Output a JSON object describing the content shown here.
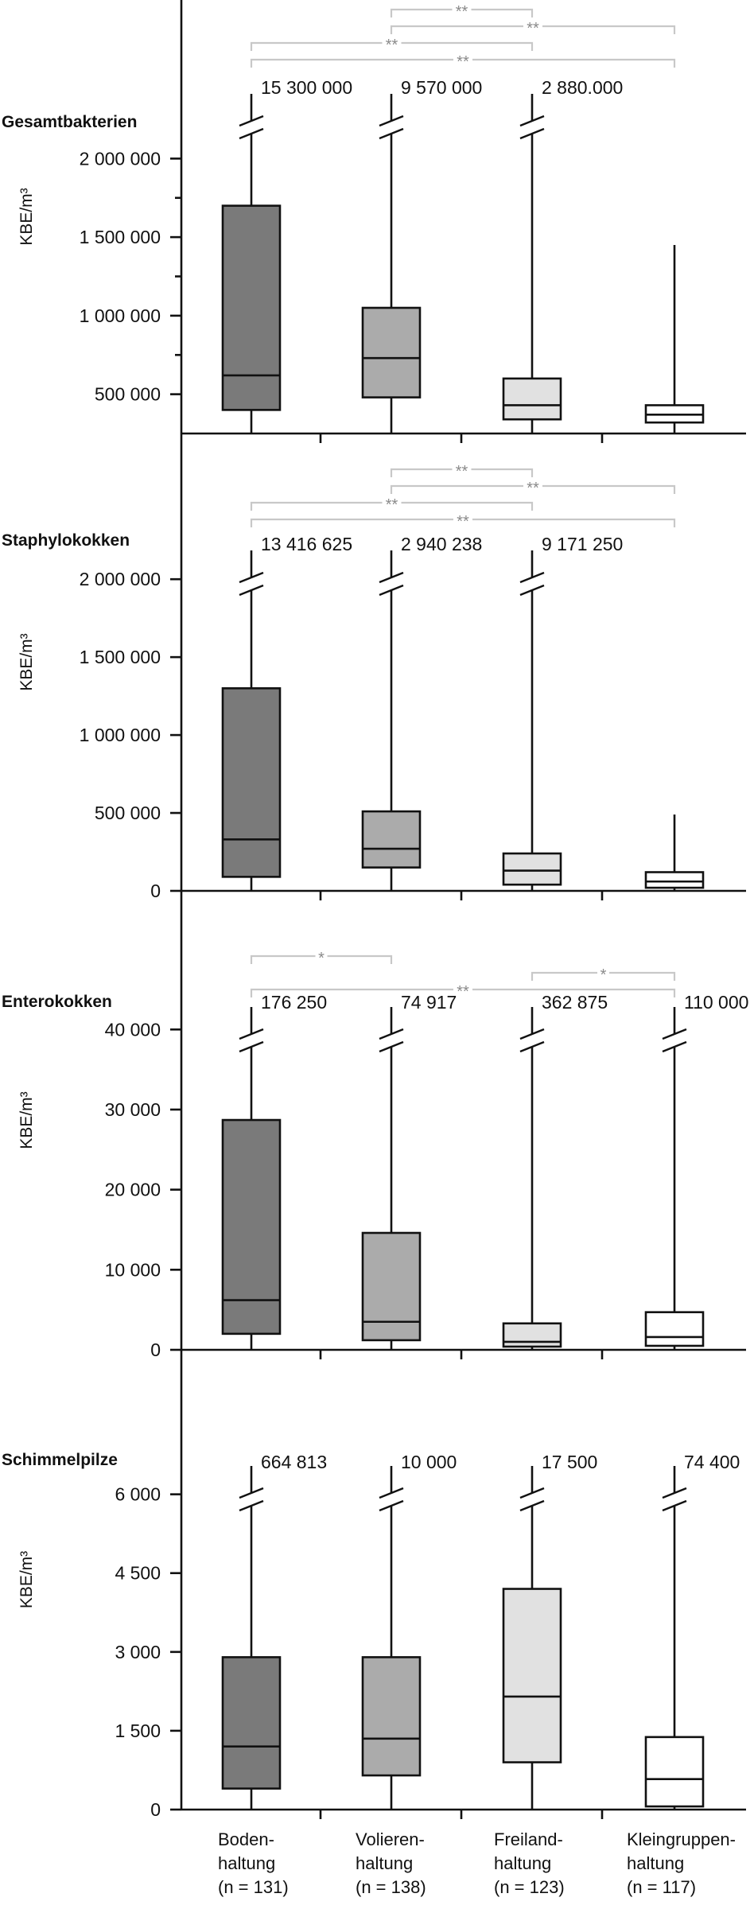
{
  "chart_data": {
    "type": "boxplot",
    "categories": [
      {
        "lines": [
          "Boden-",
          "haltung",
          "(n = 131)"
        ],
        "color": "#7a7a7a"
      },
      {
        "lines": [
          "Volieren-",
          "haltung",
          "(n = 138)"
        ],
        "color": "#ababab"
      },
      {
        "lines": [
          "Freiland-",
          "haltung",
          "(n = 123)"
        ],
        "color": "#e1e1e1"
      },
      {
        "lines": [
          "Kleingruppen-",
          "haltung",
          "(n = 117)"
        ],
        "color": "#ffffff"
      }
    ],
    "panels": [
      {
        "title": "Gesamtbakterien",
        "ylabel": "KBE/m³",
        "ylim": [
          250000,
          2250000
        ],
        "yticks": [
          {
            "value": 500000,
            "label": "500 000"
          },
          {
            "value": 1000000,
            "label": "1 000 000"
          },
          {
            "value": 1500000,
            "label": "1 500 000"
          },
          {
            "value": 2000000,
            "label": "2 000 000"
          }
        ],
        "minor_ticks": [
          750000,
          1250000,
          1750000
        ],
        "boxes": [
          {
            "min": 250000,
            "q1": 400000,
            "median": 620000,
            "q3": 1700000,
            "max_label": "15 300 000",
            "broken": true
          },
          {
            "min": 250000,
            "q1": 480000,
            "median": 730000,
            "q3": 1050000,
            "max_label": "9 570 000",
            "broken": true
          },
          {
            "min": 250000,
            "q1": 340000,
            "median": 430000,
            "q3": 600000,
            "max_label": "2 880.000",
            "broken": true
          },
          {
            "min": 250000,
            "q1": 320000,
            "median": 370000,
            "q3": 430000,
            "max": 1450000,
            "max_label": "",
            "broken": false
          }
        ],
        "significance": [
          {
            "from": 1,
            "to": 2,
            "label": "**"
          },
          {
            "from": 1,
            "to": 3,
            "label": "**"
          },
          {
            "from": 0,
            "to": 2,
            "label": "**"
          },
          {
            "from": 0,
            "to": 3,
            "label": "**"
          }
        ]
      },
      {
        "title": "Staphylokokken",
        "ylabel": "KBE/m³",
        "ylim": [
          0,
          2200000
        ],
        "yticks": [
          {
            "value": 0,
            "label": "0"
          },
          {
            "value": 500000,
            "label": "500 000"
          },
          {
            "value": 1000000,
            "label": "1 000 000"
          },
          {
            "value": 1500000,
            "label": "1 500 000"
          },
          {
            "value": 2000000,
            "label": "2 000 000"
          }
        ],
        "boxes": [
          {
            "min": 0,
            "q1": 90000,
            "median": 330000,
            "q3": 1300000,
            "max_label": "13 416 625",
            "broken": true
          },
          {
            "min": 0,
            "q1": 150000,
            "median": 270000,
            "q3": 510000,
            "max_label": "2 940 238",
            "broken": true
          },
          {
            "min": 0,
            "q1": 40000,
            "median": 130000,
            "q3": 240000,
            "max_label": "9 171 250",
            "broken": true
          },
          {
            "min": 0,
            "q1": 20000,
            "median": 60000,
            "q3": 120000,
            "max": 490000,
            "max_label": "",
            "broken": false
          }
        ],
        "significance": [
          {
            "from": 1,
            "to": 2,
            "label": "**"
          },
          {
            "from": 1,
            "to": 3,
            "label": "**"
          },
          {
            "from": 0,
            "to": 2,
            "label": "**"
          },
          {
            "from": 0,
            "to": 3,
            "label": "**"
          }
        ]
      },
      {
        "title": "Enterokokken",
        "ylabel": "KBE/m³",
        "ylim": [
          0,
          44000
        ],
        "yticks": [
          {
            "value": 0,
            "label": "0"
          },
          {
            "value": 10000,
            "label": "10 000"
          },
          {
            "value": 20000,
            "label": "20 000"
          },
          {
            "value": 30000,
            "label": "30 000"
          },
          {
            "value": 40000,
            "label": "40 000"
          }
        ],
        "boxes": [
          {
            "min": 0,
            "q1": 2000,
            "median": 6200,
            "q3": 28700,
            "max_label": "176 250",
            "broken": true
          },
          {
            "min": 0,
            "q1": 1200,
            "median": 3500,
            "q3": 14600,
            "max_label": "74 917",
            "broken": true
          },
          {
            "min": 0,
            "q1": 400,
            "median": 1000,
            "q3": 3300,
            "max_label": "362 875",
            "broken": true
          },
          {
            "min": 0,
            "q1": 500,
            "median": 1600,
            "q3": 4700,
            "max_label": "110 000",
            "broken": true
          }
        ],
        "significance": [
          {
            "from": 0,
            "to": 1,
            "label": "*"
          },
          {
            "from": 2,
            "to": 3,
            "label": "*"
          },
          {
            "from": 0,
            "to": 3,
            "label": "**"
          }
        ]
      },
      {
        "title": "Schimmelpilze",
        "ylabel": "KBE/m³",
        "ylim": [
          0,
          6600
        ],
        "yticks": [
          {
            "value": 0,
            "label": "0"
          },
          {
            "value": 1500,
            "label": "1 500"
          },
          {
            "value": 3000,
            "label": "3 000"
          },
          {
            "value": 4500,
            "label": "4 500"
          },
          {
            "value": 6000,
            "label": "6 000"
          }
        ],
        "boxes": [
          {
            "min": 0,
            "q1": 400,
            "median": 1200,
            "q3": 2900,
            "max_label": "664 813",
            "broken": true
          },
          {
            "min": 0,
            "q1": 650,
            "median": 1350,
            "q3": 2900,
            "max_label": "10 000",
            "broken": true
          },
          {
            "min": 0,
            "q1": 900,
            "median": 2150,
            "q3": 4200,
            "max_label": "17 500",
            "broken": true
          },
          {
            "min": 0,
            "q1": 60,
            "median": 580,
            "q3": 1380,
            "max_label": "74 400",
            "broken": true
          }
        ],
        "significance": []
      }
    ]
  }
}
